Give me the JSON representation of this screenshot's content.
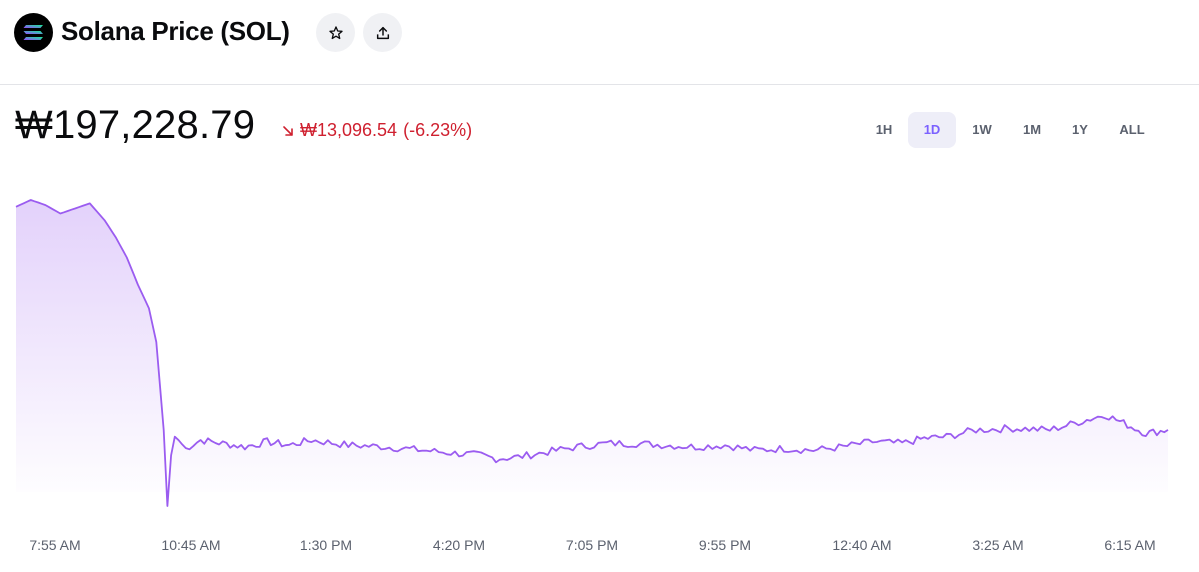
{
  "header": {
    "title": "Solana Price (SOL)",
    "logo_icon": "solana-logo-icon",
    "favorite_icon": "star-icon",
    "share_icon": "share-icon"
  },
  "price": {
    "current": "₩197,228.79",
    "change_amount": "₩13,096.54",
    "change_percent": "(-6.23%)",
    "direction_icon": "arrow-down-right-icon"
  },
  "time_ranges": [
    "1H",
    "1D",
    "1W",
    "1M",
    "1Y",
    "ALL"
  ],
  "selected_range": "1D",
  "colors": {
    "line": "#9b5cf0",
    "negative": "#cf202f",
    "accent": "#7b61ff"
  },
  "chart_data": {
    "type": "area",
    "x_ticks": [
      "7:55 AM",
      "10:45 AM",
      "1:30 PM",
      "4:20 PM",
      "7:05 PM",
      "9:55 PM",
      "12:40 AM",
      "3:25 AM",
      "6:15 AM"
    ],
    "y_axis_labels": false,
    "grid": false,
    "series": [
      {
        "points": [
          [
            0,
            202
          ],
          [
            0.2,
            202.4
          ],
          [
            0.4,
            202.1
          ],
          [
            0.6,
            201.6
          ],
          [
            0.8,
            201.9
          ],
          [
            1.0,
            202.2
          ],
          [
            1.2,
            201.2
          ],
          [
            1.35,
            200.2
          ],
          [
            1.5,
            199.0
          ],
          [
            1.65,
            197.4
          ],
          [
            1.8,
            196.0
          ],
          [
            1.9,
            194.0
          ],
          [
            2.0,
            188.8
          ],
          [
            2.05,
            184.3
          ],
          [
            2.1,
            187.3
          ],
          [
            2.15,
            188.4
          ],
          [
            2.2,
            188.2
          ],
          [
            2.3,
            187.7
          ],
          [
            2.5,
            188.2
          ],
          [
            2.8,
            188.0
          ],
          [
            3.1,
            187.8
          ],
          [
            3.4,
            188.1
          ],
          [
            3.7,
            187.9
          ],
          [
            4.0,
            188.2
          ],
          [
            4.5,
            187.9
          ],
          [
            5.0,
            187.8
          ],
          [
            5.5,
            187.6
          ],
          [
            6.0,
            187.4
          ],
          [
            6.3,
            187.3
          ],
          [
            6.5,
            187.1
          ],
          [
            6.8,
            187.2
          ],
          [
            7.2,
            187.5
          ],
          [
            7.6,
            187.8
          ],
          [
            8.0,
            188.0
          ],
          [
            8.4,
            188.0
          ],
          [
            8.8,
            187.9
          ],
          [
            9.2,
            187.8
          ],
          [
            9.6,
            187.9
          ],
          [
            10.0,
            187.6
          ],
          [
            10.4,
            187.7
          ],
          [
            10.8,
            187.6
          ],
          [
            11.2,
            187.8
          ],
          [
            11.6,
            188.1
          ],
          [
            12.0,
            188.0
          ],
          [
            12.3,
            188.3
          ],
          [
            12.6,
            188.4
          ],
          [
            13.0,
            188.8
          ],
          [
            13.5,
            188.9
          ],
          [
            14.0,
            188.8
          ],
          [
            14.5,
            189.4
          ],
          [
            14.75,
            189.7
          ],
          [
            15.0,
            189.2
          ],
          [
            15.3,
            188.6
          ],
          [
            15.6,
            188.8
          ]
        ]
      }
    ],
    "y_min": 184.3,
    "y_max": 202.4
  }
}
